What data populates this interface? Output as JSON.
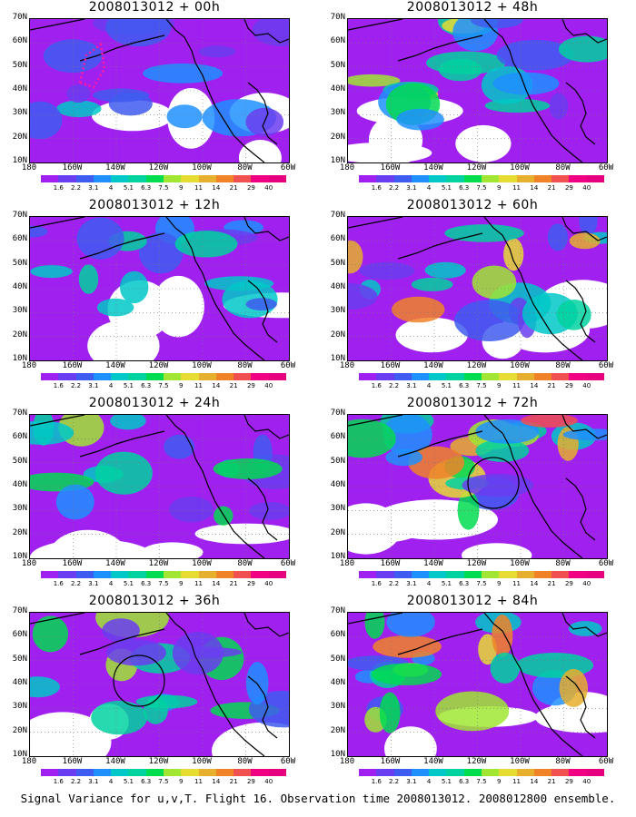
{
  "footer": "Signal Variance for u,v,T. Flight 16. Observation time 2008013012. 2008012800 ensemble.",
  "panels": [
    {
      "title": "2008013012 + 00h",
      "intensity": 0.25,
      "circle": false,
      "track": true
    },
    {
      "title": "2008013012 + 48h",
      "intensity": 0.6,
      "circle": false,
      "track": false
    },
    {
      "title": "2008013012 + 12h",
      "intensity": 0.35,
      "circle": false,
      "track": false
    },
    {
      "title": "2008013012 + 60h",
      "intensity": 0.7,
      "circle": false,
      "track": false
    },
    {
      "title": "2008013012 + 24h",
      "intensity": 0.45,
      "circle": false,
      "track": false
    },
    {
      "title": "2008013012 + 72h",
      "intensity": 0.75,
      "circle": true,
      "track": false
    },
    {
      "title": "2008013012 + 36h",
      "intensity": 0.5,
      "circle": true,
      "track": false
    },
    {
      "title": "2008013012 + 84h",
      "intensity": 0.8,
      "circle": false,
      "track": false
    }
  ],
  "lat_labels": [
    "70N",
    "60N",
    "50N",
    "40N",
    "30N",
    "20N",
    "10N"
  ],
  "lon_labels": [
    "180",
    "160W",
    "140W",
    "120W",
    "100W",
    "80W",
    "60W"
  ],
  "colorbar": {
    "labels": [
      "1.6",
      "2.2",
      "3.1",
      "4",
      "5.1",
      "6.3",
      "7.5",
      "9",
      "11",
      "14",
      "21",
      "29",
      "40"
    ],
    "colors": [
      "#a020f0",
      "#6a3df0",
      "#3f5cf0",
      "#1e90ff",
      "#00c8c8",
      "#00d2a0",
      "#00dc50",
      "#a0e632",
      "#e6dc32",
      "#e6af2d",
      "#f08228",
      "#f05050",
      "#f00082",
      "#e6007f"
    ]
  }
}
